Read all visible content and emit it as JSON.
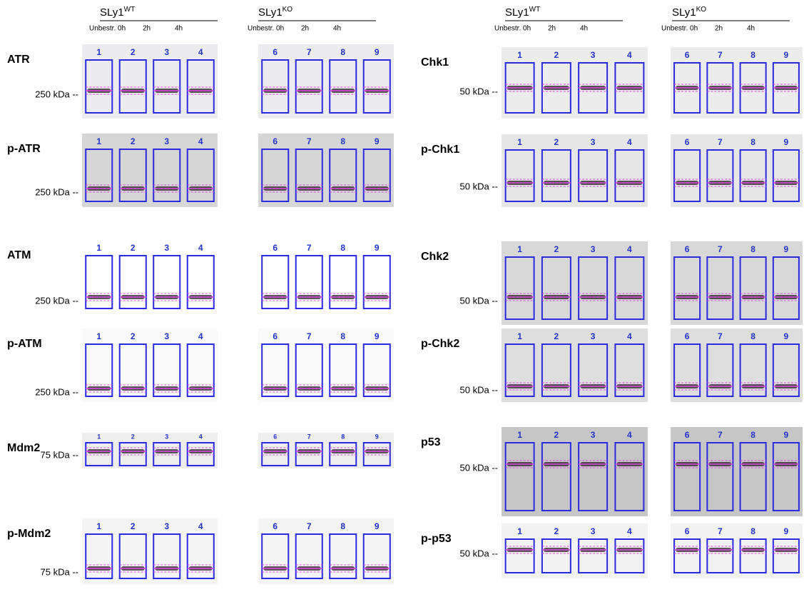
{
  "headers": [
    {
      "name": "SLy1",
      "superscript": "WT",
      "lanes": [
        "Unbestr. 0h",
        "2h",
        "4h"
      ]
    },
    {
      "name": "SLy1",
      "superscript": "KO",
      "lanes": [
        "Unbestr. 0h",
        "2h",
        "4h"
      ]
    },
    {
      "name": "SLy1",
      "superscript": "WT",
      "lanes": [
        "Unbestr. 0h",
        "2h",
        "4h"
      ]
    },
    {
      "name": "SLy1",
      "superscript": "KO",
      "lanes": [
        "Unbestr. 0h",
        "2h",
        "4h"
      ]
    }
  ],
  "lane_numbers": [
    [
      "1",
      "2",
      "3",
      "4"
    ],
    [
      "6",
      "7",
      "8",
      "9"
    ]
  ],
  "panels": [
    {
      "name": "ATR",
      "marker": "250 kDa --"
    },
    {
      "name": "p-ATR",
      "marker": "250 kDa --"
    },
    {
      "name": "ATM",
      "marker": "250 kDa --"
    },
    {
      "name": "p-ATM",
      "marker": "250 kDa --"
    },
    {
      "name": "Mdm2",
      "marker": "75 kDa --"
    },
    {
      "name": "p-Mdm2",
      "marker": "75 kDa --"
    },
    {
      "name": "Chk1",
      "marker": "50 kDa --"
    },
    {
      "name": "p-Chk1",
      "marker": "50 kDa --"
    },
    {
      "name": "Chk2",
      "marker": "50 kDa --"
    },
    {
      "name": "p-Chk2",
      "marker": "50 kDa --"
    },
    {
      "name": "p53",
      "marker": "50 kDa --"
    },
    {
      "name": "p-p53",
      "marker": "50 kDa --"
    }
  ]
}
